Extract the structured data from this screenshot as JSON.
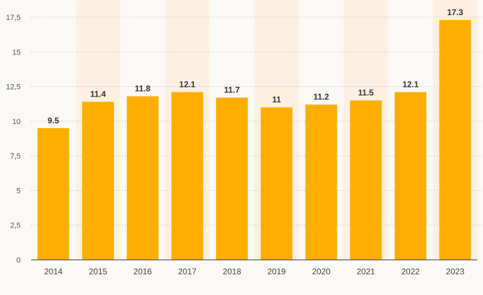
{
  "chart_data": {
    "type": "bar",
    "categories": [
      "2014",
      "2015",
      "2016",
      "2017",
      "2018",
      "2019",
      "2020",
      "2021",
      "2022",
      "2023"
    ],
    "values": [
      9.5,
      11.4,
      11.8,
      12.1,
      11.7,
      11,
      11.2,
      11.5,
      12.1,
      17.3
    ],
    "value_labels": [
      "9.5",
      "11.4",
      "11.8",
      "12.1",
      "11.7",
      "11",
      "11.2",
      "11.5",
      "12.1",
      "17.3"
    ],
    "yticks": [
      0,
      2.5,
      5,
      7.5,
      10,
      12.5,
      15,
      17.5
    ],
    "ytick_labels": [
      "0",
      "2,5",
      "5",
      "7,5",
      "10",
      "12,5",
      "15",
      "17,5"
    ],
    "ylim": [
      0,
      17.5
    ],
    "title": "",
    "xlabel": "",
    "ylabel": "",
    "grid": "horizontal dotted",
    "colors": {
      "bar": "#fdae00",
      "background": "#fbf9f6",
      "stripe": "#fdf0e2"
    }
  }
}
